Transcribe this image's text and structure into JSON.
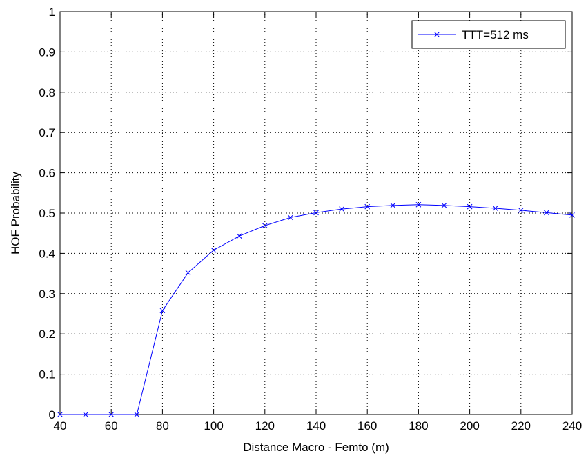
{
  "chart_data": {
    "type": "line",
    "title": "",
    "xlabel": "Distance Macro - Femto (m)",
    "ylabel": "HOF Probability",
    "xlim": [
      40,
      240
    ],
    "ylim": [
      0,
      1
    ],
    "xticks": [
      40,
      60,
      80,
      100,
      120,
      140,
      160,
      180,
      200,
      220,
      240
    ],
    "xtick_labels": [
      "40",
      "60",
      "80",
      "100",
      "120",
      "140",
      "160",
      "180",
      "200",
      "220",
      "240"
    ],
    "yticks": [
      0,
      0.1,
      0.2,
      0.3,
      0.4,
      0.5,
      0.6,
      0.7,
      0.8,
      0.9,
      1
    ],
    "ytick_labels": [
      "0",
      "0.1",
      "0.2",
      "0.3",
      "0.4",
      "0.5",
      "0.6",
      "0.7",
      "0.8",
      "0.9",
      "1"
    ],
    "grid": true,
    "grid_style": "dotted",
    "legend_position": "top-right",
    "series": [
      {
        "name": "TTT=512 ms",
        "color": "#0000ff",
        "marker": "x",
        "x": [
          40,
          50,
          60,
          70,
          80,
          90,
          100,
          110,
          120,
          130,
          140,
          150,
          160,
          170,
          180,
          190,
          200,
          210,
          220,
          230,
          240
        ],
        "y": [
          0,
          0,
          0,
          0,
          0.258,
          0.352,
          0.408,
          0.443,
          0.469,
          0.489,
          0.501,
          0.51,
          0.516,
          0.519,
          0.521,
          0.519,
          0.516,
          0.512,
          0.507,
          0.501,
          0.495
        ]
      }
    ]
  }
}
